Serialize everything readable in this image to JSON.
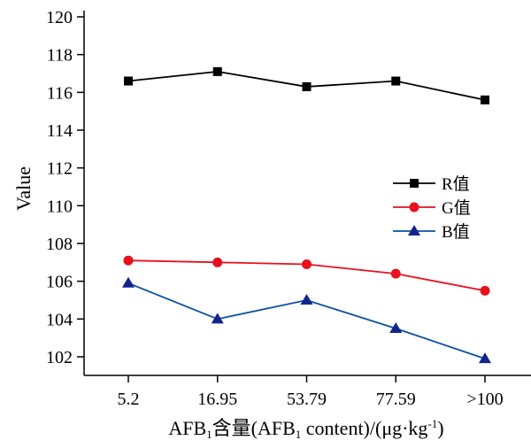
{
  "chart_data": {
    "type": "line",
    "title": "",
    "xlabel": "AFB₁含量(AFB₁ content)/(μg·kg⁻¹)",
    "xlabel_parts": {
      "a": "AFB",
      "sub1": "1",
      "b": "含量(AFB",
      "sub2": "1",
      "c": " content)/(μg·kg",
      "sup": "-1",
      "d": ")"
    },
    "ylabel": "Value",
    "categories": [
      "5.2",
      "16.95",
      "53.79",
      "77.59",
      ">100"
    ],
    "ylim": [
      101,
      120
    ],
    "yticks": [
      102,
      104,
      106,
      108,
      110,
      112,
      114,
      116,
      118,
      120
    ],
    "grid": false,
    "legend_position": "center-right",
    "series": [
      {
        "name": "R值",
        "color": "#000000",
        "marker": "square",
        "values": [
          116.6,
          117.1,
          116.3,
          116.6,
          115.6
        ]
      },
      {
        "name": "G值",
        "color": "#e8101e",
        "marker": "circle",
        "values": [
          107.1,
          107.0,
          106.9,
          106.4,
          105.5
        ]
      },
      {
        "name": "B值",
        "color": "#0a4fa0",
        "marker": "triangle",
        "marker_color": "#12238f",
        "values": [
          105.9,
          104.0,
          105.0,
          103.5,
          101.9
        ]
      }
    ]
  }
}
